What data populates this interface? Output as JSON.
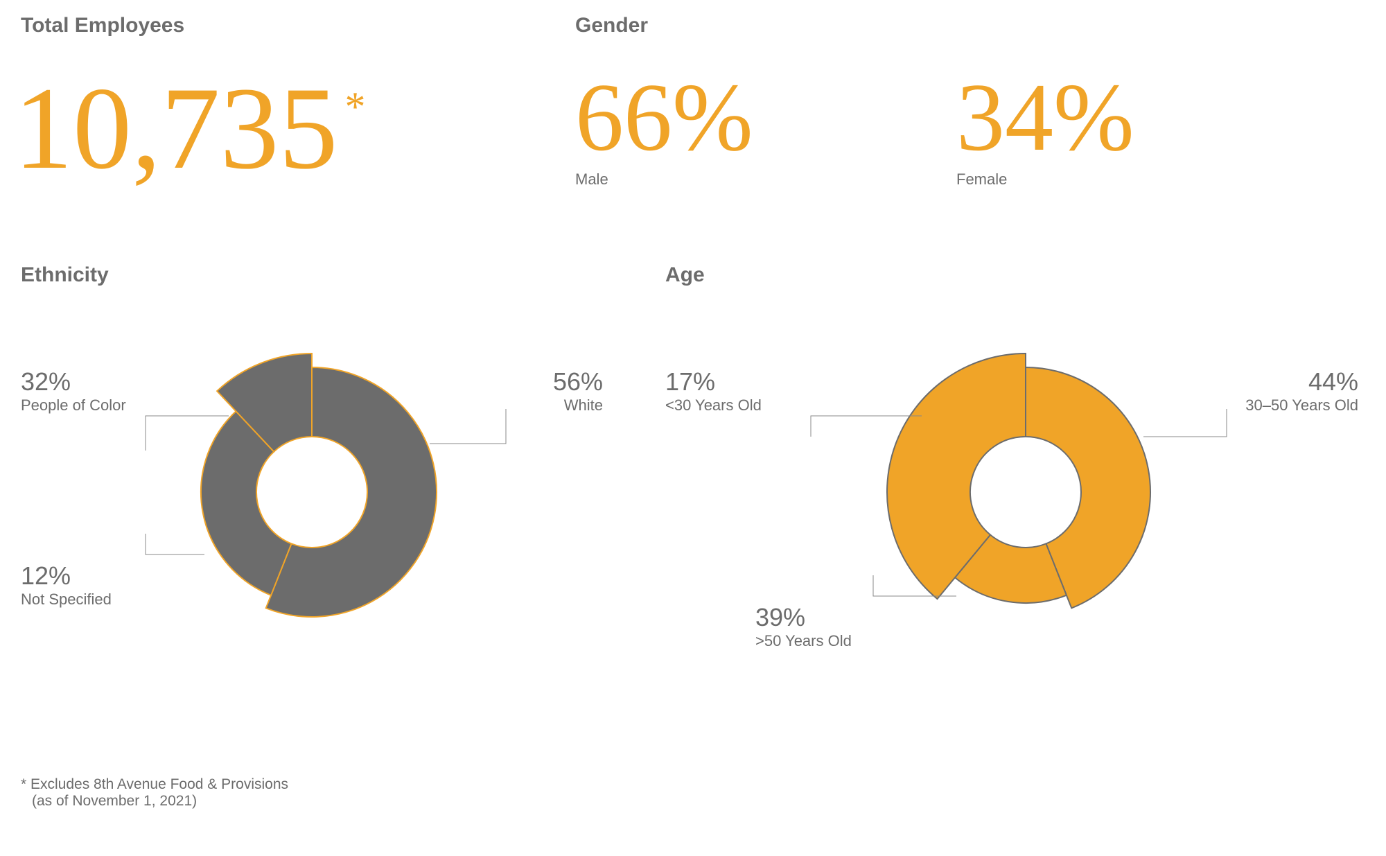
{
  "colors": {
    "accent": "#f0a428",
    "gray_fill": "#6c6c6c",
    "text": "#6c6c6c",
    "white": "#ffffff",
    "leader_line": "#888888"
  },
  "typography": {
    "section_title_size": 30,
    "big_number_size_total": 170,
    "big_number_size_gender": 140,
    "sub_label_size": 22,
    "pct_label_size": 36,
    "pct_sub_size": 22,
    "footnote_size": 21
  },
  "total_employees": {
    "title": "Total Employees",
    "value": "10,735",
    "asterisk": "*"
  },
  "gender": {
    "title": "Gender",
    "items": [
      {
        "value": "66%",
        "label": "Male"
      },
      {
        "value": "34%",
        "label": "Female"
      }
    ]
  },
  "ethnicity": {
    "title": "Ethnicity",
    "chart": {
      "type": "donut-exploded",
      "fill_color": "#6c6c6c",
      "stroke_color": "#f0a428",
      "stroke_width": 2,
      "inner_radius": 80,
      "outer_radius_base": 160,
      "slices": [
        {
          "label": "White",
          "value": 56,
          "outer_radius": 180
        },
        {
          "label": "People of Color",
          "value": 32,
          "outer_radius": 160
        },
        {
          "label": "Not Specified",
          "value": 12,
          "outer_radius": 200
        }
      ]
    },
    "labels": [
      {
        "pct": "32%",
        "text": "People of Color"
      },
      {
        "pct": "12%",
        "text": "Not Specified"
      },
      {
        "pct": "56%",
        "text": "White"
      }
    ]
  },
  "age": {
    "title": "Age",
    "chart": {
      "type": "donut-exploded",
      "fill_color": "#f0a428",
      "stroke_color": "#6c6c6c",
      "stroke_width": 2,
      "inner_radius": 80,
      "outer_radius_base": 160,
      "slices": [
        {
          "label": "30–50 Years Old",
          "value": 44,
          "outer_radius": 180
        },
        {
          "label": "<30 Years Old",
          "value": 17,
          "outer_radius": 160
        },
        {
          "label": ">50 Years Old",
          "value": 39,
          "outer_radius": 200
        }
      ]
    },
    "labels": [
      {
        "pct": "17%",
        "text": "<30 Years Old"
      },
      {
        "pct": "39%",
        "text": ">50 Years Old"
      },
      {
        "pct": "44%",
        "text": "30–50 Years Old"
      }
    ]
  },
  "footnote": {
    "line1": "* Excludes 8th Avenue Food & Provisions",
    "line2": "(as of November 1, 2021)"
  }
}
